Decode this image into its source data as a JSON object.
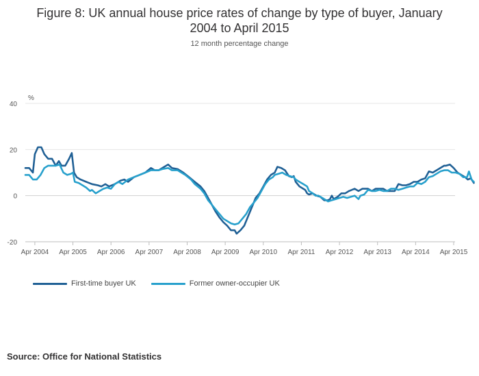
{
  "chart_data": {
    "type": "line",
    "title_line1": "Figure 8: UK annual house price rates of change by type of buyer, January",
    "title_line2": "2004 to April 2015",
    "subtitle": "12 month percentage change",
    "ylabel": "%",
    "ylim": [
      -20,
      40
    ],
    "yticks": [
      "40",
      "20",
      "0",
      "-20"
    ],
    "ytick_values": [
      40,
      20,
      0,
      -20
    ],
    "xlim": [
      2004.0,
      2015.25
    ],
    "xticks": [
      "Apr 2004",
      "Apr 2005",
      "Apr 2006",
      "Apr 2007",
      "Apr 2008",
      "Apr 2009",
      "Apr 2010",
      "Apr 2011",
      "Apr 2012",
      "Apr 2013",
      "Apr 2014",
      "Apr 2015"
    ],
    "xtick_values": [
      2004.25,
      2005.25,
      2006.25,
      2007.25,
      2008.25,
      2009.25,
      2010.25,
      2011.25,
      2012.25,
      2013.25,
      2014.25,
      2015.25
    ],
    "series": [
      {
        "name": "First-time buyer UK",
        "color": "#206095",
        "points": [
          [
            2004.0,
            12
          ],
          [
            2004.1,
            12
          ],
          [
            2004.2,
            10
          ],
          [
            2004.25,
            18
          ],
          [
            2004.33,
            21
          ],
          [
            2004.42,
            21
          ],
          [
            2004.5,
            18
          ],
          [
            2004.6,
            16
          ],
          [
            2004.7,
            16
          ],
          [
            2004.8,
            13
          ],
          [
            2004.88,
            15
          ],
          [
            2004.95,
            13
          ],
          [
            2005.05,
            13
          ],
          [
            2005.15,
            16
          ],
          [
            2005.22,
            18.5
          ],
          [
            2005.28,
            10
          ],
          [
            2005.35,
            8
          ],
          [
            2005.45,
            7
          ],
          [
            2005.6,
            6
          ],
          [
            2005.75,
            5
          ],
          [
            2005.9,
            4.5
          ],
          [
            2006.0,
            4
          ],
          [
            2006.1,
            5
          ],
          [
            2006.2,
            4
          ],
          [
            2006.35,
            5
          ],
          [
            2006.5,
            6.5
          ],
          [
            2006.6,
            7
          ],
          [
            2006.7,
            6
          ],
          [
            2006.85,
            8
          ],
          [
            2007.0,
            9
          ],
          [
            2007.15,
            10
          ],
          [
            2007.3,
            12
          ],
          [
            2007.4,
            11
          ],
          [
            2007.5,
            11
          ],
          [
            2007.6,
            12
          ],
          [
            2007.75,
            13.5
          ],
          [
            2007.85,
            12
          ],
          [
            2008.0,
            11.5
          ],
          [
            2008.15,
            10
          ],
          [
            2008.3,
            8
          ],
          [
            2008.45,
            6
          ],
          [
            2008.6,
            4
          ],
          [
            2008.7,
            2
          ],
          [
            2008.8,
            -1
          ],
          [
            2008.9,
            -4
          ],
          [
            2009.0,
            -7
          ],
          [
            2009.1,
            -9.5
          ],
          [
            2009.2,
            -11.5
          ],
          [
            2009.3,
            -13
          ],
          [
            2009.4,
            -15
          ],
          [
            2009.5,
            -15
          ],
          [
            2009.55,
            -16.5
          ],
          [
            2009.65,
            -15
          ],
          [
            2009.75,
            -13
          ],
          [
            2009.85,
            -9
          ],
          [
            2009.95,
            -5
          ],
          [
            2010.05,
            -1
          ],
          [
            2010.15,
            1
          ],
          [
            2010.25,
            4
          ],
          [
            2010.35,
            7
          ],
          [
            2010.45,
            9
          ],
          [
            2010.55,
            10
          ],
          [
            2010.62,
            12.5
          ],
          [
            2010.72,
            12
          ],
          [
            2010.82,
            11
          ],
          [
            2010.92,
            8.5
          ],
          [
            2011.0,
            8
          ],
          [
            2011.05,
            8.5
          ],
          [
            2011.1,
            6
          ],
          [
            2011.2,
            4
          ],
          [
            2011.3,
            3
          ],
          [
            2011.35,
            2.5
          ],
          [
            2011.4,
            1
          ],
          [
            2011.45,
            0.5
          ],
          [
            2011.55,
            1
          ],
          [
            2011.65,
            0
          ],
          [
            2011.75,
            -0.5
          ],
          [
            2011.85,
            -2
          ],
          [
            2011.95,
            -2
          ],
          [
            2012.0,
            -1.5
          ],
          [
            2012.05,
            0
          ],
          [
            2012.1,
            -1.5
          ],
          [
            2012.2,
            -0.5
          ],
          [
            2012.3,
            1
          ],
          [
            2012.4,
            1
          ],
          [
            2012.5,
            2
          ],
          [
            2012.65,
            3
          ],
          [
            2012.75,
            2
          ],
          [
            2012.85,
            3
          ],
          [
            2013.0,
            3
          ],
          [
            2013.1,
            2
          ],
          [
            2013.2,
            3
          ],
          [
            2013.3,
            3
          ],
          [
            2013.4,
            3
          ],
          [
            2013.5,
            2
          ],
          [
            2013.6,
            2
          ],
          [
            2013.7,
            2
          ],
          [
            2013.8,
            5
          ],
          [
            2013.9,
            4.5
          ],
          [
            2014.0,
            4.5
          ],
          [
            2014.1,
            5
          ],
          [
            2014.2,
            6
          ],
          [
            2014.3,
            6
          ],
          [
            2014.4,
            7
          ],
          [
            2014.5,
            7.5
          ],
          [
            2014.6,
            10.5
          ],
          [
            2014.7,
            10
          ],
          [
            2014.8,
            11
          ],
          [
            2014.9,
            12
          ],
          [
            2015.0,
            13
          ],
          [
            2015.05,
            13
          ],
          [
            2015.15,
            13.5
          ],
          [
            2015.25,
            12
          ],
          [
            2015.35,
            10
          ],
          [
            2015.45,
            9
          ],
          [
            2015.55,
            8
          ],
          [
            2015.62,
            7
          ],
          [
            2015.7,
            7.5
          ],
          [
            2015.78,
            5.5
          ]
        ]
      },
      {
        "name": "Former owner-occupier UK",
        "color": "#27a0cc",
        "points": [
          [
            2004.0,
            9
          ],
          [
            2004.1,
            9
          ],
          [
            2004.2,
            7
          ],
          [
            2004.3,
            7
          ],
          [
            2004.4,
            9
          ],
          [
            2004.5,
            12
          ],
          [
            2004.6,
            13
          ],
          [
            2004.7,
            13
          ],
          [
            2004.8,
            13
          ],
          [
            2004.9,
            13.5
          ],
          [
            2005.0,
            10
          ],
          [
            2005.1,
            9
          ],
          [
            2005.2,
            9.5
          ],
          [
            2005.25,
            10
          ],
          [
            2005.3,
            6
          ],
          [
            2005.4,
            5.5
          ],
          [
            2005.5,
            4.5
          ],
          [
            2005.6,
            3.5
          ],
          [
            2005.7,
            2
          ],
          [
            2005.75,
            2.5
          ],
          [
            2005.85,
            1
          ],
          [
            2005.95,
            2
          ],
          [
            2006.05,
            3
          ],
          [
            2006.15,
            3.5
          ],
          [
            2006.25,
            3
          ],
          [
            2006.35,
            5
          ],
          [
            2006.45,
            6
          ],
          [
            2006.55,
            5
          ],
          [
            2006.7,
            7
          ],
          [
            2006.85,
            8
          ],
          [
            2007.0,
            9
          ],
          [
            2007.15,
            10
          ],
          [
            2007.3,
            11
          ],
          [
            2007.4,
            11
          ],
          [
            2007.5,
            11
          ],
          [
            2007.6,
            11.5
          ],
          [
            2007.75,
            12
          ],
          [
            2007.85,
            11
          ],
          [
            2008.0,
            11
          ],
          [
            2008.1,
            10
          ],
          [
            2008.2,
            9
          ],
          [
            2008.35,
            7
          ],
          [
            2008.45,
            5
          ],
          [
            2008.6,
            3
          ],
          [
            2008.7,
            1
          ],
          [
            2008.8,
            -2
          ],
          [
            2008.9,
            -4
          ],
          [
            2009.0,
            -6
          ],
          [
            2009.1,
            -8
          ],
          [
            2009.2,
            -10
          ],
          [
            2009.3,
            -11
          ],
          [
            2009.4,
            -12
          ],
          [
            2009.5,
            -12.5
          ],
          [
            2009.6,
            -12
          ],
          [
            2009.7,
            -10
          ],
          [
            2009.8,
            -8
          ],
          [
            2009.9,
            -5
          ],
          [
            2010.0,
            -3
          ],
          [
            2010.1,
            -1
          ],
          [
            2010.2,
            2
          ],
          [
            2010.3,
            5
          ],
          [
            2010.4,
            7
          ],
          [
            2010.5,
            8
          ],
          [
            2010.55,
            9
          ],
          [
            2010.65,
            9.5
          ],
          [
            2010.75,
            10
          ],
          [
            2010.85,
            9
          ],
          [
            2010.95,
            8.5
          ],
          [
            2011.05,
            8
          ],
          [
            2011.1,
            7
          ],
          [
            2011.2,
            6
          ],
          [
            2011.3,
            5
          ],
          [
            2011.4,
            4
          ],
          [
            2011.45,
            2
          ],
          [
            2011.55,
            1
          ],
          [
            2011.62,
            0
          ],
          [
            2011.7,
            0
          ],
          [
            2011.8,
            -1
          ],
          [
            2011.9,
            -2
          ],
          [
            2011.95,
            -2.5
          ],
          [
            2012.05,
            -2
          ],
          [
            2012.15,
            -1.5
          ],
          [
            2012.25,
            -1
          ],
          [
            2012.35,
            -0.5
          ],
          [
            2012.45,
            -1
          ],
          [
            2012.55,
            -0.5
          ],
          [
            2012.65,
            0
          ],
          [
            2012.75,
            -1.5
          ],
          [
            2012.8,
            0
          ],
          [
            2012.9,
            0.5
          ],
          [
            2013.0,
            2.5
          ],
          [
            2013.1,
            2
          ],
          [
            2013.2,
            2
          ],
          [
            2013.3,
            2.5
          ],
          [
            2013.4,
            2
          ],
          [
            2013.5,
            2
          ],
          [
            2013.6,
            3
          ],
          [
            2013.7,
            3
          ],
          [
            2013.8,
            2.5
          ],
          [
            2013.9,
            3
          ],
          [
            2014.0,
            3.5
          ],
          [
            2014.1,
            4
          ],
          [
            2014.2,
            4
          ],
          [
            2014.3,
            5.5
          ],
          [
            2014.4,
            5
          ],
          [
            2014.5,
            6
          ],
          [
            2014.6,
            8
          ],
          [
            2014.7,
            8.5
          ],
          [
            2014.8,
            9.5
          ],
          [
            2014.9,
            10.5
          ],
          [
            2015.0,
            11
          ],
          [
            2015.1,
            11
          ],
          [
            2015.2,
            10
          ],
          [
            2015.3,
            10
          ],
          [
            2015.4,
            9.5
          ],
          [
            2015.5,
            8
          ],
          [
            2015.6,
            8
          ],
          [
            2015.65,
            10.5
          ],
          [
            2015.72,
            7
          ],
          [
            2015.78,
            6
          ]
        ]
      }
    ],
    "source": "Source: Office for National Statistics"
  }
}
